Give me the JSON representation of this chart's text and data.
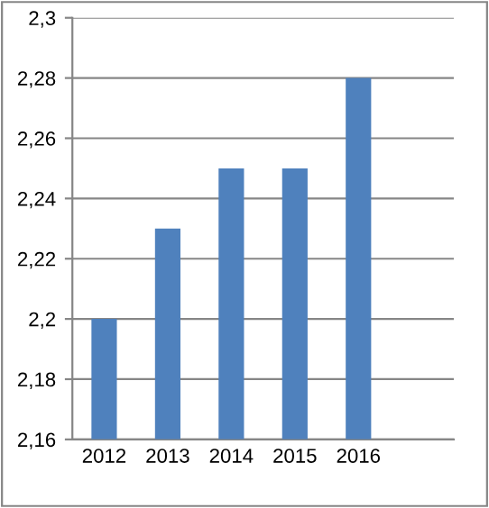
{
  "chart_data": {
    "type": "bar",
    "categories": [
      "2012",
      "2013",
      "2014",
      "2015",
      "2016",
      null
    ],
    "values": [
      2.2,
      2.23,
      2.25,
      2.25,
      2.28,
      null
    ],
    "color": "#4f81bd",
    "ylim": [
      2.16,
      2.3
    ],
    "yticks": [
      {
        "value": 2.16,
        "label": "2,16"
      },
      {
        "value": 2.18,
        "label": "2,18"
      },
      {
        "value": 2.2,
        "label": "2,2"
      },
      {
        "value": 2.22,
        "label": "2,22"
      },
      {
        "value": 2.24,
        "label": "2,24"
      },
      {
        "value": 2.26,
        "label": "2,26"
      },
      {
        "value": 2.28,
        "label": "2,28"
      },
      {
        "value": 2.3,
        "label": "2,3"
      }
    ],
    "grid": "y"
  }
}
